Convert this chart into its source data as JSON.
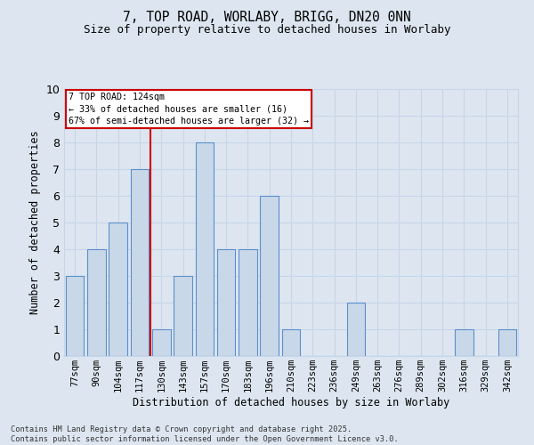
{
  "title_line1": "7, TOP ROAD, WORLABY, BRIGG, DN20 0NN",
  "title_line2": "Size of property relative to detached houses in Worlaby",
  "xlabel": "Distribution of detached houses by size in Worlaby",
  "ylabel": "Number of detached properties",
  "bins": [
    "77sqm",
    "90sqm",
    "104sqm",
    "117sqm",
    "130sqm",
    "143sqm",
    "157sqm",
    "170sqm",
    "183sqm",
    "196sqm",
    "210sqm",
    "223sqm",
    "236sqm",
    "249sqm",
    "263sqm",
    "276sqm",
    "289sqm",
    "302sqm",
    "316sqm",
    "329sqm",
    "342sqm"
  ],
  "values": [
    3,
    4,
    5,
    7,
    1,
    3,
    8,
    4,
    4,
    6,
    1,
    0,
    0,
    2,
    0,
    0,
    0,
    0,
    1,
    0,
    1
  ],
  "bar_color": "#c8d8e8",
  "bar_edge_color": "#5b8fcc",
  "vline_x_index": 3.5,
  "vline_color": "#cc0000",
  "annotation_text": "7 TOP ROAD: 124sqm\n← 33% of detached houses are smaller (16)\n67% of semi-detached houses are larger (32) →",
  "annotation_box_color": "#ffffff",
  "annotation_box_edge": "#cc0000",
  "grid_color": "#c8d4e8",
  "background_color": "#dde6f0",
  "ylim": [
    0,
    10
  ],
  "yticks": [
    0,
    1,
    2,
    3,
    4,
    5,
    6,
    7,
    8,
    9,
    10
  ],
  "footer_line1": "Contains HM Land Registry data © Crown copyright and database right 2025.",
  "footer_line2": "Contains public sector information licensed under the Open Government Licence v3.0."
}
